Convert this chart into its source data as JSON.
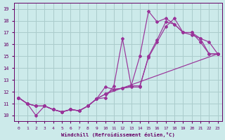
{
  "xlabel": "Windchill (Refroidissement éolien,°C)",
  "bg_color": "#cceaea",
  "grid_color": "#aacccc",
  "line_color": "#993399",
  "xlim": [
    -0.5,
    23.5
  ],
  "ylim": [
    9.5,
    19.5
  ],
  "xticks": [
    0,
    1,
    2,
    3,
    4,
    5,
    6,
    7,
    8,
    9,
    10,
    11,
    12,
    13,
    14,
    15,
    16,
    17,
    18,
    19,
    20,
    21,
    22,
    23
  ],
  "yticks": [
    10,
    11,
    12,
    13,
    14,
    15,
    16,
    17,
    18,
    19
  ],
  "line1_x": [
    0,
    1,
    2,
    3,
    4,
    5,
    6,
    7,
    8,
    9,
    10,
    11,
    12,
    13,
    14,
    15,
    16,
    17,
    18,
    19,
    20,
    21,
    22,
    23
  ],
  "line1_y": [
    11.5,
    11.0,
    10.0,
    10.8,
    10.5,
    10.3,
    10.5,
    10.4,
    10.8,
    11.4,
    12.4,
    12.2,
    12.3,
    12.4,
    12.4,
    15.0,
    16.4,
    17.9,
    17.7,
    17.0,
    16.8,
    16.5,
    15.2,
    15.2
  ],
  "line2_x": [
    0,
    1,
    2,
    3,
    4,
    5,
    6,
    7,
    8,
    9,
    10,
    11,
    12,
    13,
    14,
    15,
    16,
    17,
    18,
    19,
    20,
    21,
    22,
    23
  ],
  "line2_y": [
    11.5,
    11.0,
    10.8,
    10.8,
    10.5,
    10.3,
    10.5,
    10.4,
    10.8,
    11.4,
    11.5,
    12.5,
    16.5,
    12.5,
    15.0,
    18.8,
    17.9,
    18.2,
    17.7,
    17.0,
    17.0,
    16.2,
    15.2,
    15.2
  ],
  "line3_x": [
    0,
    1,
    2,
    3,
    4,
    5,
    6,
    7,
    8,
    9,
    10,
    23
  ],
  "line3_y": [
    11.5,
    11.0,
    10.8,
    10.8,
    10.5,
    10.3,
    10.5,
    10.4,
    10.8,
    11.4,
    11.8,
    15.2
  ],
  "line4_x": [
    0,
    1,
    2,
    3,
    4,
    5,
    6,
    7,
    8,
    9,
    10,
    11,
    12,
    13,
    14,
    15,
    16,
    17,
    18,
    19,
    20,
    21,
    22,
    23
  ],
  "line4_y": [
    11.5,
    11.0,
    10.8,
    10.8,
    10.5,
    10.3,
    10.5,
    10.4,
    10.8,
    11.4,
    11.8,
    12.2,
    12.3,
    12.5,
    12.5,
    14.9,
    16.2,
    17.5,
    18.2,
    17.0,
    17.0,
    16.5,
    16.2,
    15.2
  ]
}
